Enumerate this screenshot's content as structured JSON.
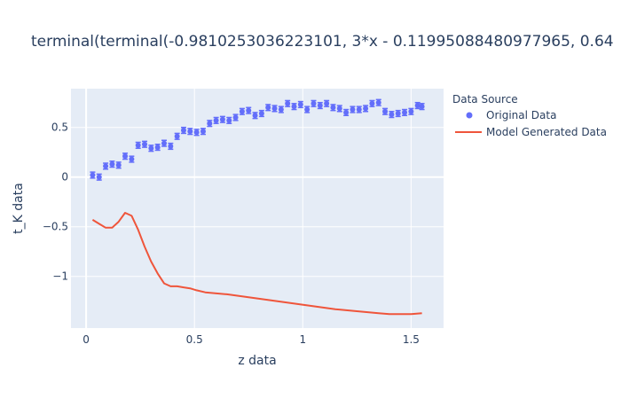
{
  "chart_data": {
    "type": "scatter",
    "title": "terminal(terminal(-0.981025303622310​1, 3*x - 0.11995088480977965, 0.64",
    "xlabel": "z data",
    "ylabel": "t_K data",
    "xlim": [
      -0.07,
      1.65
    ],
    "ylim": [
      -1.52,
      0.89
    ],
    "x_ticks": [
      0,
      0.5,
      1,
      1.5
    ],
    "x_tick_labels": [
      "0",
      "0.5",
      "1",
      "1.5"
    ],
    "y_ticks": [
      0.5,
      0,
      -0.5,
      -1
    ],
    "y_tick_labels": [
      "0.5",
      "0",
      "−0.5",
      "−1"
    ],
    "grid": true,
    "legend": {
      "title": "Data Source",
      "position": "right",
      "entries": [
        "Original Data",
        "Model Generated Data"
      ]
    },
    "colors": {
      "original": "#636efa",
      "model": "#ef553b",
      "plot_bg": "#e5ecf6",
      "grid": "#ffffff",
      "text": "#2a3f5f"
    },
    "series": [
      {
        "name": "Original Data",
        "mode": "markers",
        "error_y": 0.03,
        "x": [
          0.03,
          0.06,
          0.09,
          0.12,
          0.15,
          0.18,
          0.21,
          0.24,
          0.27,
          0.3,
          0.33,
          0.36,
          0.39,
          0.42,
          0.45,
          0.48,
          0.51,
          0.54,
          0.57,
          0.6,
          0.63,
          0.66,
          0.69,
          0.72,
          0.75,
          0.78,
          0.81,
          0.84,
          0.87,
          0.9,
          0.93,
          0.96,
          0.99,
          1.02,
          1.05,
          1.08,
          1.11,
          1.14,
          1.17,
          1.2,
          1.23,
          1.26,
          1.29,
          1.32,
          1.35,
          1.38,
          1.41,
          1.44,
          1.47,
          1.5,
          1.53,
          1.55
        ],
        "y": [
          0.02,
          0.0,
          0.11,
          0.13,
          0.12,
          0.21,
          0.18,
          0.32,
          0.33,
          0.29,
          0.3,
          0.34,
          0.31,
          0.41,
          0.47,
          0.46,
          0.45,
          0.46,
          0.54,
          0.57,
          0.58,
          0.57,
          0.6,
          0.66,
          0.67,
          0.62,
          0.64,
          0.7,
          0.69,
          0.68,
          0.74,
          0.71,
          0.73,
          0.68,
          0.74,
          0.72,
          0.74,
          0.7,
          0.69,
          0.65,
          0.68,
          0.68,
          0.69,
          0.74,
          0.75,
          0.66,
          0.63,
          0.64,
          0.65,
          0.66,
          0.72,
          0.71
        ]
      },
      {
        "name": "Model Generated Data",
        "mode": "lines",
        "x": [
          0.03,
          0.06,
          0.09,
          0.12,
          0.15,
          0.18,
          0.21,
          0.24,
          0.27,
          0.3,
          0.33,
          0.36,
          0.39,
          0.42,
          0.45,
          0.48,
          0.51,
          0.55,
          0.65,
          0.75,
          0.85,
          0.95,
          1.05,
          1.15,
          1.25,
          1.35,
          1.4,
          1.45,
          1.5,
          1.55
        ],
        "y": [
          -0.43,
          -0.47,
          -0.51,
          -0.51,
          -0.45,
          -0.36,
          -0.39,
          -0.53,
          -0.7,
          -0.85,
          -0.97,
          -1.07,
          -1.1,
          -1.1,
          -1.11,
          -1.12,
          -1.14,
          -1.16,
          -1.18,
          -1.21,
          -1.24,
          -1.27,
          -1.3,
          -1.33,
          -1.35,
          -1.37,
          -1.38,
          -1.38,
          -1.38,
          -1.37
        ]
      }
    ]
  }
}
